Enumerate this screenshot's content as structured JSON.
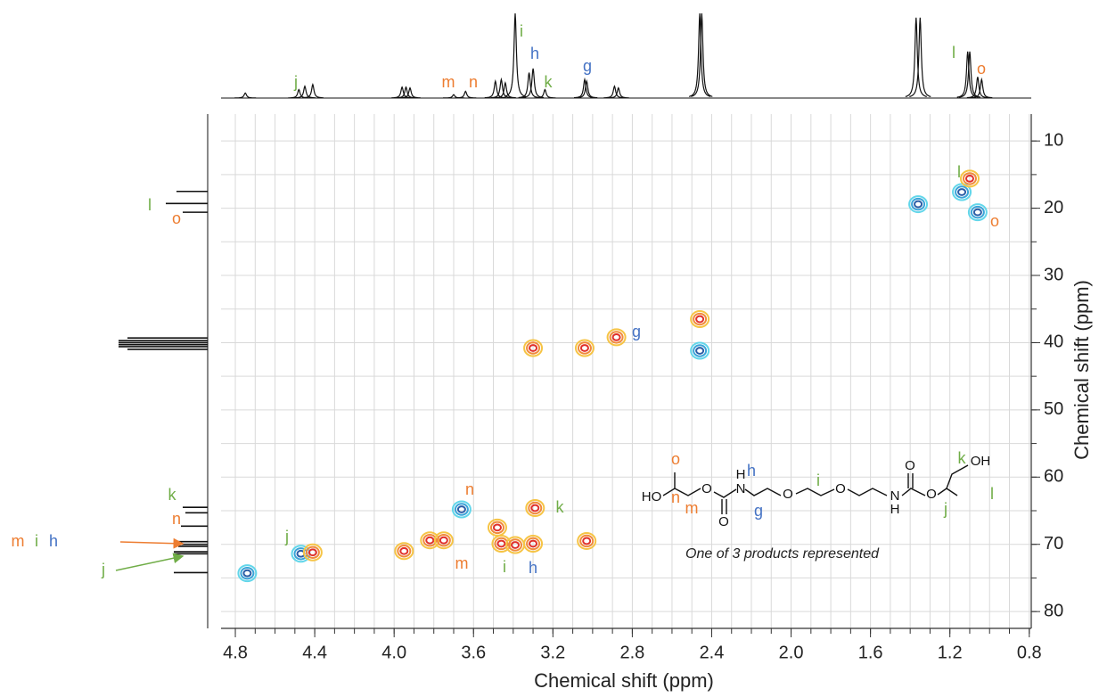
{
  "chart_data": {
    "type": "hsqc",
    "x_label": "Chemical shift (ppm)",
    "y_label": "Chemical shift (ppm)",
    "caption": "One of 3 products represented",
    "xlim": [
      4.872,
      0.79
    ],
    "ylim": [
      6.0,
      82.5
    ],
    "xticks": [
      4.8,
      4.4,
      {
        "value": 4,
        "label": "4.0"
      },
      3.6,
      3.2,
      2.8,
      2.4,
      {
        "value": 2,
        "label": "2.0"
      },
      1.6,
      1.2,
      0.8
    ],
    "yticks": [
      10,
      20,
      30,
      40,
      50,
      60,
      70,
      80
    ],
    "xgrid": [
      4.8,
      4.7,
      4.6,
      4.5,
      4.4,
      4.3,
      4.2,
      4.1,
      4.0,
      3.9,
      3.8,
      3.7,
      3.6,
      3.5,
      3.4,
      3.3,
      3.2,
      3.1,
      3.0,
      2.9,
      2.8,
      2.7,
      2.6,
      2.5,
      2.4,
      2.3,
      2.2,
      2.1,
      2.0,
      1.9,
      1.8,
      1.7,
      1.6,
      1.5,
      1.4,
      1.3,
      1.2,
      1.1,
      1.0,
      0.9,
      0.8
    ],
    "ygrid": [
      10,
      15,
      20,
      25,
      30,
      35,
      40,
      45,
      50,
      55,
      60,
      65,
      70,
      75,
      80
    ],
    "grid": true,
    "positive_colors": [
      "#f6c445",
      "#f08a3c",
      "#e0302a"
    ],
    "negative_colors": [
      "#62d6ea",
      "#3aa3d8",
      "#2b5da6"
    ],
    "peaks": {
      "x": [
        4.74,
        4.47,
        4.41,
        3.95,
        3.82,
        3.75,
        3.66,
        3.48,
        3.46,
        3.39,
        3.3,
        3.29,
        3.04,
        2.88,
        2.46,
        2.46,
        1.36,
        1.14,
        1.06,
        1.1,
        3.3,
        3.03
      ],
      "y": [
        74.3,
        71.4,
        71.2,
        71.0,
        69.4,
        69.4,
        64.8,
        67.5,
        69.9,
        70.1,
        69.9,
        64.6,
        40.8,
        39.2,
        41.2,
        36.5,
        19.4,
        17.6,
        20.6,
        15.6,
        40.8,
        69.5
      ],
      "phase": [
        "neg",
        "neg",
        "pos",
        "pos",
        "pos",
        "pos",
        "neg",
        "pos",
        "pos",
        "pos",
        "pos",
        "pos",
        "pos",
        "pos",
        "neg",
        "pos",
        "neg",
        "neg",
        "neg",
        "pos",
        "pos",
        "pos"
      ]
    },
    "top_spectrum": {
      "x": [
        4.75,
        4.48,
        4.45,
        4.41,
        3.96,
        3.94,
        3.92,
        3.7,
        3.64,
        3.49,
        3.46,
        3.44,
        3.39,
        3.32,
        3.3,
        3.24,
        3.04,
        3.03,
        2.89,
        2.87,
        2.46,
        2.45,
        1.37,
        1.35,
        1.11,
        1.1,
        1.06,
        1.04
      ],
      "heights": [
        6,
        10,
        14,
        16,
        13,
        13,
        12,
        4,
        8,
        20,
        22,
        18,
        100,
        30,
        35,
        10,
        22,
        20,
        14,
        12,
        100,
        100,
        95,
        95,
        55,
        55,
        25,
        22
      ]
    },
    "left_spectrum": {
      "y": [
        17.5,
        19.3,
        20.6,
        39.3,
        39.7,
        40.0,
        40.3,
        40.6,
        41.0,
        64.5,
        65.3,
        67.3,
        69.6,
        70.0,
        70.3,
        71.1,
        71.4,
        74.2
      ],
      "heights": [
        35,
        47,
        28,
        90,
        100,
        100,
        100,
        100,
        90,
        28,
        25,
        30,
        33,
        33,
        33,
        38,
        38,
        38
      ]
    },
    "annotations": [
      {
        "text": "j",
        "color": "#70ad47"
      },
      {
        "text": "m",
        "color": "#ed7d31"
      },
      {
        "text": "n",
        "color": "#ed7d31"
      },
      {
        "text": "i",
        "color": "#70ad47"
      },
      {
        "text": "h",
        "color": "#4472c4"
      },
      {
        "text": "k",
        "color": "#70ad47"
      },
      {
        "text": "g",
        "color": "#4472c4"
      },
      {
        "text": "l",
        "color": "#70ad47"
      },
      {
        "text": "o",
        "color": "#ed7d31"
      },
      {
        "text": "l",
        "color": "#70ad47"
      },
      {
        "text": "o",
        "color": "#ed7d31"
      },
      {
        "text": "k",
        "color": "#70ad47"
      },
      {
        "text": "n",
        "color": "#ed7d31"
      },
      {
        "text": "m",
        "color": "#ed7d31"
      },
      {
        "text": "i",
        "color": "#70ad47"
      },
      {
        "text": "h",
        "color": "#4472c4"
      },
      {
        "text": "j",
        "color": "#70ad47"
      },
      {
        "text": "l",
        "color": "#70ad47"
      },
      {
        "text": "o",
        "color": "#ed7d31"
      },
      {
        "text": "g",
        "color": "#4472c4"
      },
      {
        "text": "n",
        "color": "#ed7d31"
      },
      {
        "text": "k",
        "color": "#70ad47"
      },
      {
        "text": "m",
        "color": "#ed7d31"
      },
      {
        "text": "i",
        "color": "#70ad47"
      },
      {
        "text": "h",
        "color": "#4472c4"
      },
      {
        "text": "j",
        "color": "#70ad47"
      },
      {
        "text": "o",
        "color": "#ed7d31"
      },
      {
        "text": "h",
        "color": "#4472c4"
      },
      {
        "text": "i",
        "color": "#70ad47"
      },
      {
        "text": "k",
        "color": "#70ad47"
      },
      {
        "text": "n",
        "color": "#ed7d31"
      },
      {
        "text": "m",
        "color": "#ed7d31"
      },
      {
        "text": "g",
        "color": "#4472c4"
      },
      {
        "text": "j",
        "color": "#70ad47"
      },
      {
        "text": "l",
        "color": "#70ad47"
      }
    ],
    "structure_atoms": [
      "HO",
      "O",
      "O",
      "N",
      "H",
      "O",
      "O",
      "N",
      "H",
      "O",
      "O",
      "OH"
    ]
  }
}
